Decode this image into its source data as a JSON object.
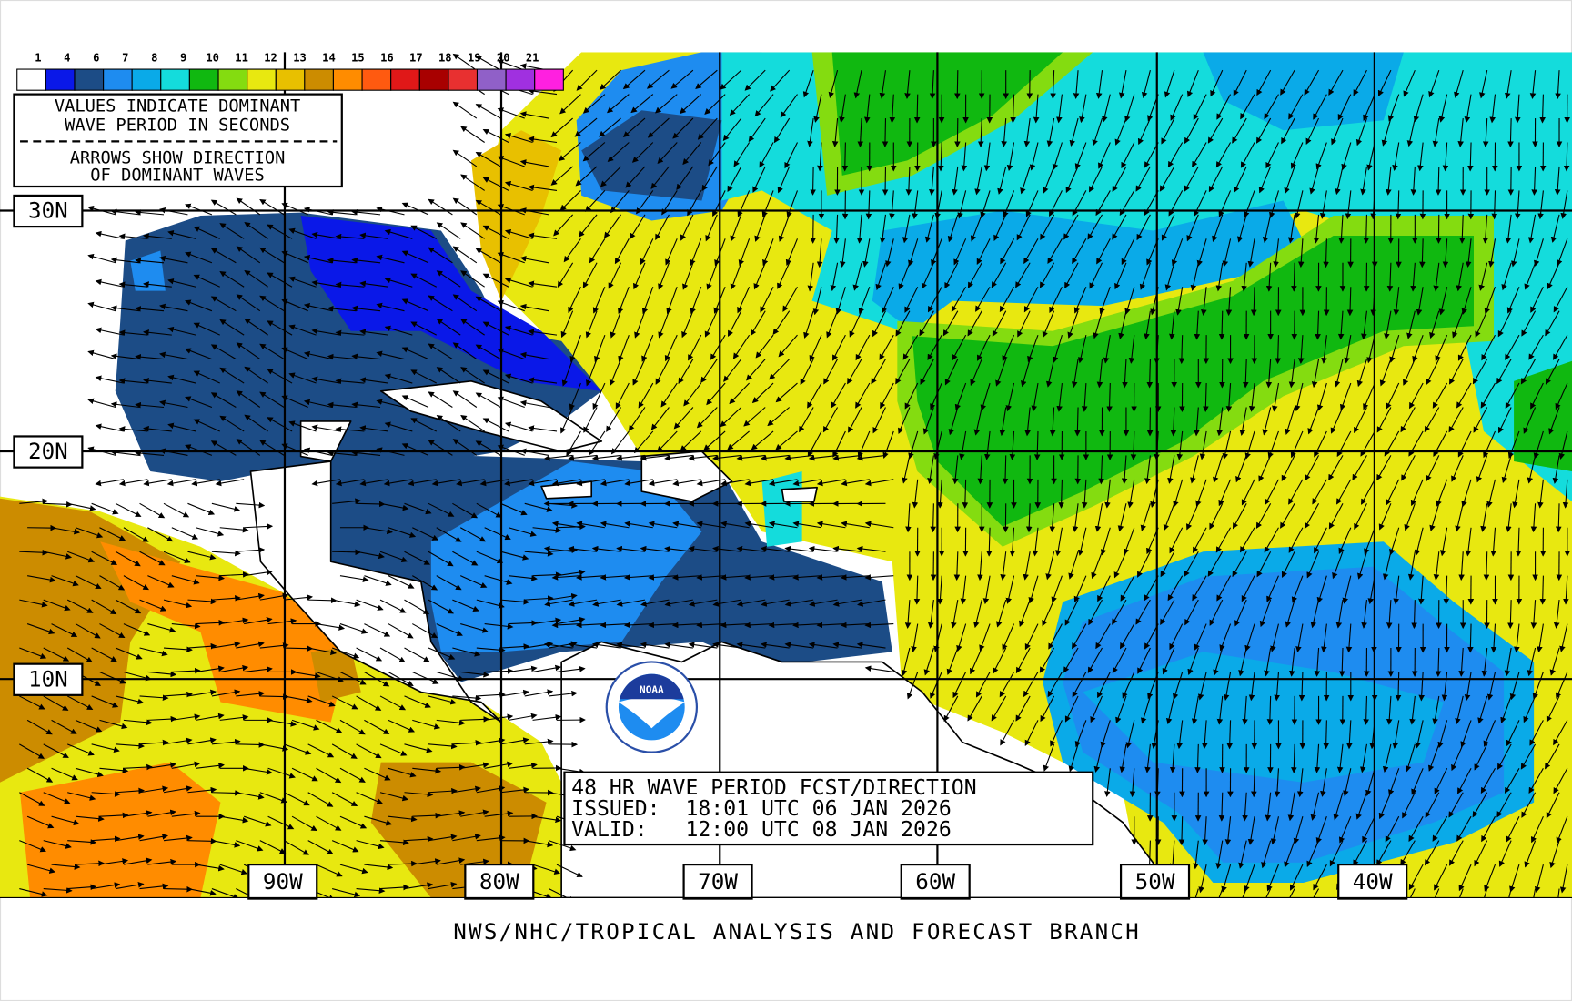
{
  "legend": {
    "ticks": [
      1,
      4,
      6,
      7,
      8,
      9,
      10,
      11,
      12,
      13,
      14,
      15,
      16,
      17,
      18,
      19,
      20,
      21
    ],
    "colors": [
      "#ffffff",
      "#0a18e8",
      "#1c4c86",
      "#1e8cf0",
      "#0aaae8",
      "#14dcdc",
      "#10b810",
      "#84dc10",
      "#e8e810",
      "#e8c000",
      "#cc8c00",
      "#ff8c00",
      "#ff5a10",
      "#e01818",
      "#a80000",
      "#e83030",
      "#9060c8",
      "#a030e0",
      "#ff20e0"
    ],
    "lines": [
      "VALUES INDICATE DOMINANT",
      "WAVE PERIOD IN SECONDS",
      "ARROWS SHOW DIRECTION",
      "OF DOMINANT WAVES"
    ]
  },
  "latitude_labels": [
    "30N",
    "20N",
    "10N"
  ],
  "longitude_labels": [
    "90W",
    "80W",
    "70W",
    "60W",
    "50W",
    "40W"
  ],
  "info": {
    "title": "48 HR WAVE PERIOD FCST/DIRECTION",
    "issued": "ISSUED:  18:01 UTC 06 JAN 2026",
    "valid": "VALID:   12:00 UTC 08 JAN 2026"
  },
  "logo": "NOAA",
  "footer": "NWS/NHC/TROPICAL ANALYSIS AND FORECAST BRANCH"
}
